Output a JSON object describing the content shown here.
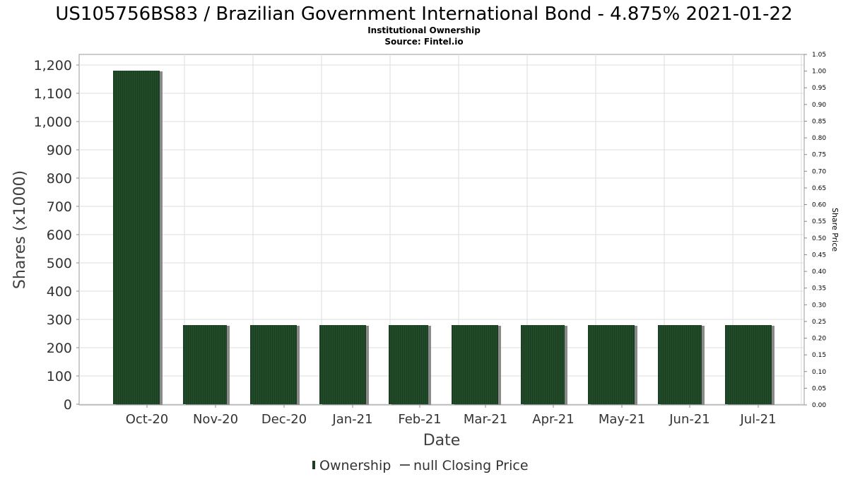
{
  "chart_data": {
    "type": "bar",
    "title": "US105756BS83 / Brazilian Government International Bond - 4.875% 2021-01-22",
    "subtitle": "Institutional Ownership",
    "source": "Source: Fintel.io",
    "xlabel": "Date",
    "ylabel": "Shares (x1000)",
    "y2label": "Share Price",
    "categories": [
      "Oct-20",
      "Nov-20",
      "Dec-20",
      "Jan-21",
      "Feb-21",
      "Mar-21",
      "Apr-21",
      "May-21",
      "Jun-21",
      "Jul-21"
    ],
    "series": [
      {
        "name": "Ownership",
        "values": [
          1180,
          280,
          280,
          280,
          280,
          280,
          280,
          280,
          280,
          280
        ]
      }
    ],
    "ylim": [
      0,
      1240
    ],
    "yticks": [
      "0",
      "100",
      "200",
      "300",
      "400",
      "500",
      "600",
      "700",
      "800",
      "900",
      "1,000",
      "1,100",
      "1,200"
    ],
    "y2lim": [
      0,
      1.05
    ],
    "y2ticks": [
      "0.00",
      "0.05",
      "0.10",
      "0.15",
      "0.20",
      "0.25",
      "0.30",
      "0.35",
      "0.40",
      "0.45",
      "0.50",
      "0.55",
      "0.60",
      "0.65",
      "0.70",
      "0.75",
      "0.80",
      "0.85",
      "0.90",
      "0.95",
      "1.00",
      "1.05"
    ],
    "legend": [
      "Ownership",
      "null Closing Price"
    ],
    "legend_position": "bottom-center",
    "grid": true,
    "colors": {
      "bar": "#1a3f22",
      "bar_shadow": "#8a8a8a",
      "grid": "#dddddd"
    }
  }
}
